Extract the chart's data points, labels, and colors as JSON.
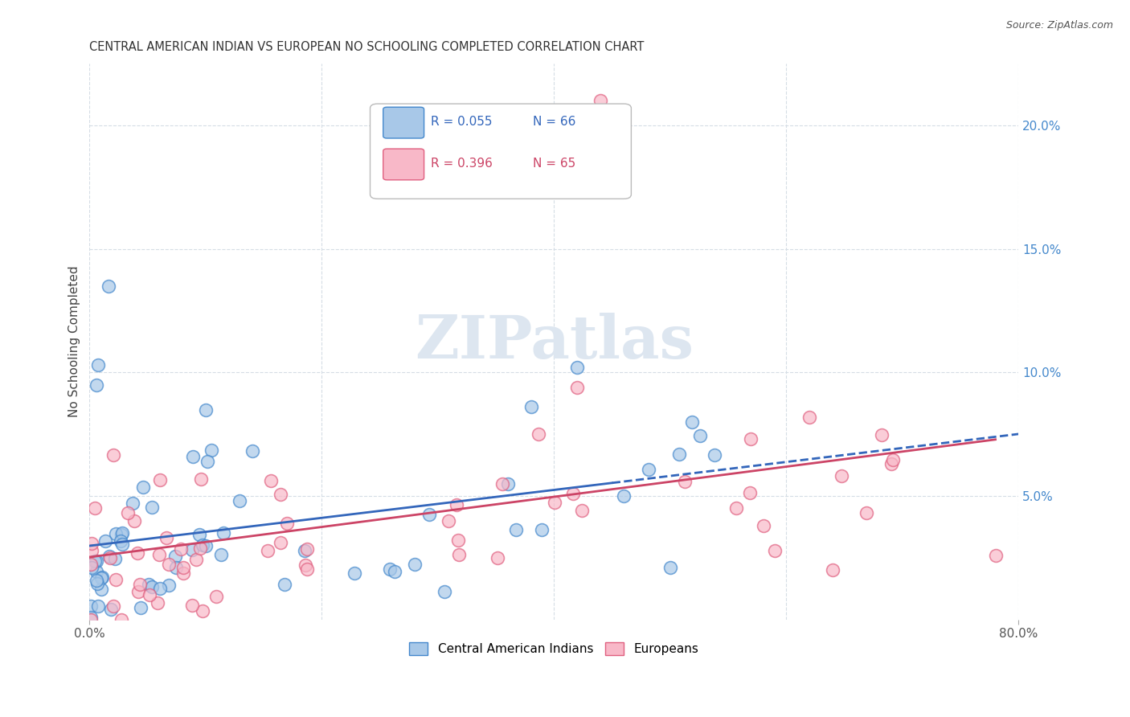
{
  "title": "CENTRAL AMERICAN INDIAN VS EUROPEAN NO SCHOOLING COMPLETED CORRELATION CHART",
  "source": "Source: ZipAtlas.com",
  "ylabel": "No Schooling Completed",
  "xlim": [
    0.0,
    0.8
  ],
  "ylim": [
    0.0,
    0.225
  ],
  "yticks_right": [
    0.05,
    0.1,
    0.15,
    0.2
  ],
  "yticklabels_right": [
    "5.0%",
    "10.0%",
    "15.0%",
    "20.0%"
  ],
  "legend_blue_r": "R = 0.055",
  "legend_blue_n": "N = 66",
  "legend_pink_r": "R = 0.396",
  "legend_pink_n": "N = 65",
  "blue_face": "#a8c8e8",
  "blue_edge": "#4488cc",
  "pink_face": "#f8b8c8",
  "pink_edge": "#e06080",
  "blue_line": "#3366bb",
  "pink_line": "#cc4466",
  "watermark": "ZIPatlas",
  "watermark_color": "#dde6f0",
  "background_color": "#ffffff",
  "grid_color": "#d5dde5"
}
